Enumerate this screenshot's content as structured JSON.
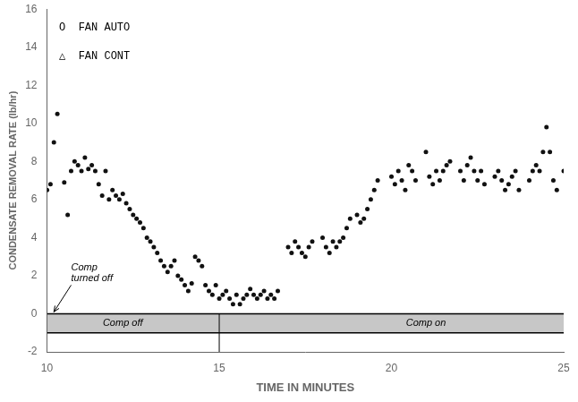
{
  "chart_data": {
    "type": "scatter",
    "x_label": "TIME IN MINUTES",
    "y_label": "CONDENSATE REMOVAL RATE (lb/hr)",
    "xlim": [
      10,
      25
    ],
    "ylim": [
      -2,
      16
    ],
    "xticks": [
      10,
      15,
      20,
      25
    ],
    "yticks": [
      -2,
      0,
      2,
      4,
      6,
      8,
      10,
      12,
      14,
      16
    ],
    "grid": false,
    "color": "#111111",
    "x": [
      10.0,
      10.1,
      10.2,
      10.3,
      10.5,
      10.6,
      10.7,
      10.8,
      10.9,
      11.0,
      11.1,
      11.2,
      11.3,
      11.4,
      11.5,
      11.6,
      11.7,
      11.8,
      11.9,
      12.0,
      12.1,
      12.2,
      12.3,
      12.4,
      12.5,
      12.6,
      12.7,
      12.8,
      12.9,
      13.0,
      13.1,
      13.2,
      13.3,
      13.4,
      13.5,
      13.6,
      13.7,
      13.8,
      13.9,
      14.0,
      14.1,
      14.2,
      14.3,
      14.4,
      14.5,
      14.6,
      14.7,
      14.8,
      14.9,
      15.0,
      15.1,
      15.2,
      15.3,
      15.4,
      15.5,
      15.6,
      15.7,
      15.8,
      15.9,
      16.0,
      16.1,
      16.2,
      16.3,
      16.4,
      16.5,
      16.6,
      16.7,
      17.0,
      17.1,
      17.2,
      17.3,
      17.4,
      17.5,
      17.6,
      17.7,
      18.0,
      18.1,
      18.2,
      18.3,
      18.4,
      18.5,
      18.6,
      18.7,
      18.8,
      19.0,
      19.1,
      19.2,
      19.3,
      19.4,
      19.5,
      19.6,
      20.0,
      20.1,
      20.2,
      20.3,
      20.4,
      20.5,
      20.6,
      20.7,
      21.0,
      21.1,
      21.2,
      21.3,
      21.4,
      21.5,
      21.6,
      21.7,
      22.0,
      22.1,
      22.2,
      22.3,
      22.4,
      22.5,
      22.6,
      22.7,
      23.0,
      23.1,
      23.2,
      23.3,
      23.4,
      23.5,
      23.6,
      23.7,
      24.0,
      24.1,
      24.2,
      24.3,
      24.4,
      24.5,
      24.6,
      24.7,
      24.8,
      25.0
    ],
    "values": [
      6.5,
      6.8,
      9.0,
      10.5,
      6.9,
      5.2,
      7.5,
      8.0,
      7.8,
      7.5,
      8.2,
      7.6,
      7.8,
      7.5,
      6.8,
      6.2,
      7.5,
      6.0,
      6.5,
      6.2,
      6.0,
      6.3,
      5.8,
      5.5,
      5.2,
      5.0,
      4.8,
      4.5,
      4.0,
      3.8,
      3.5,
      3.2,
      2.8,
      2.5,
      2.2,
      2.5,
      2.8,
      2.0,
      1.8,
      1.5,
      1.2,
      1.6,
      3.0,
      2.8,
      2.5,
      1.5,
      1.2,
      1.0,
      1.5,
      0.8,
      1.0,
      1.2,
      0.8,
      0.5,
      1.0,
      0.5,
      0.8,
      1.0,
      1.3,
      1.0,
      0.8,
      1.0,
      1.2,
      0.8,
      1.0,
      0.8,
      1.2,
      3.5,
      3.2,
      3.8,
      3.5,
      3.2,
      3.0,
      3.5,
      3.8,
      4.0,
      3.5,
      3.2,
      3.8,
      3.5,
      3.8,
      4.0,
      4.5,
      5.0,
      5.2,
      4.8,
      5.0,
      5.5,
      6.0,
      6.5,
      7.0,
      7.2,
      6.8,
      7.5,
      7.0,
      6.5,
      7.8,
      7.5,
      7.0,
      8.5,
      7.2,
      6.8,
      7.5,
      7.0,
      7.5,
      7.8,
      8.0,
      7.5,
      7.0,
      7.8,
      8.2,
      7.5,
      7.0,
      7.5,
      6.8,
      7.2,
      7.5,
      7.0,
      6.5,
      6.8,
      7.2,
      7.5,
      6.5,
      7.0,
      7.5,
      7.8,
      7.5,
      8.5,
      9.8,
      8.5,
      7.0,
      6.5,
      7.5
    ],
    "band": [
      -1,
      0
    ],
    "vertical_line_x": 15,
    "annotations": [
      {
        "text": "Comp off",
        "x": 12.2,
        "y": -0.5,
        "style": "italic"
      },
      {
        "text": "Comp on",
        "x": 21.0,
        "y": -0.5,
        "style": "italic"
      },
      {
        "text": "Comp\nturned off",
        "x": 10.7,
        "y": 1.6,
        "style": "italic",
        "arrow_to": [
          10.2,
          0.1
        ]
      },
      {
        "text": "O  FAN AUTO",
        "x": 10.35,
        "y": 15.3,
        "style": "monospace"
      },
      {
        "text": "△  FAN CONT",
        "x": 10.35,
        "y": 13.8,
        "style": "monospace"
      }
    ]
  }
}
